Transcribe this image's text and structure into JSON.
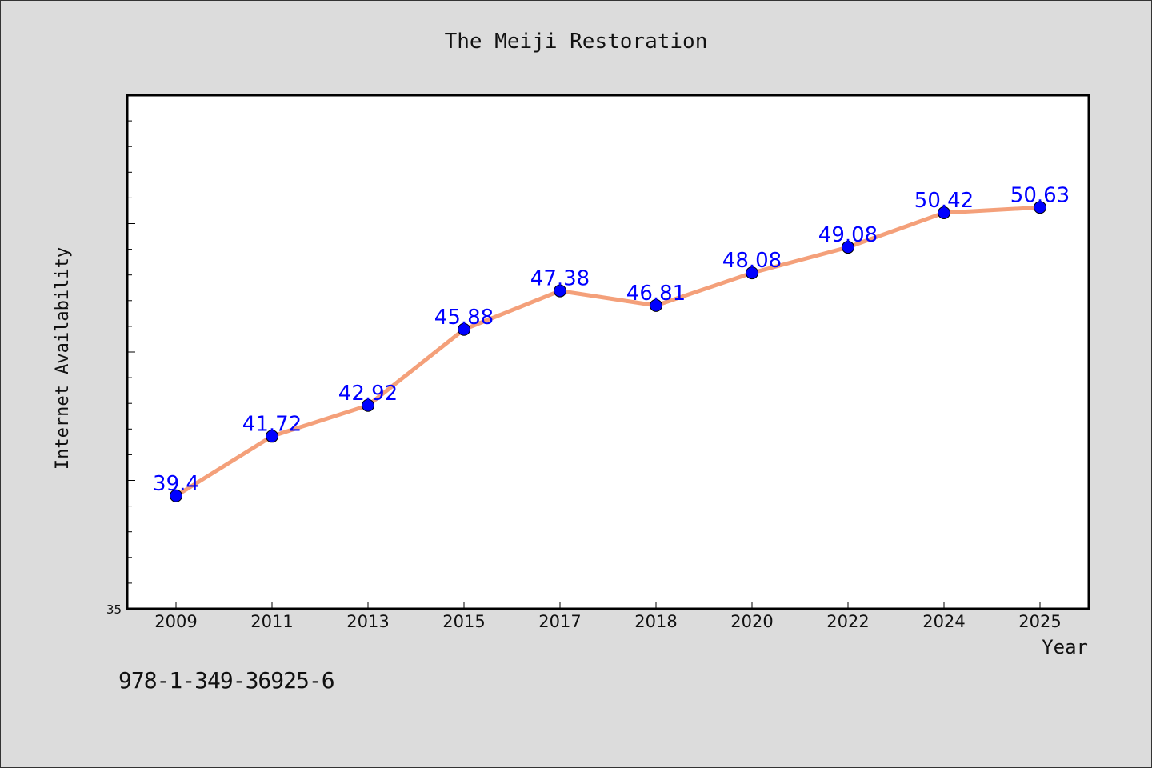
{
  "chart_data": {
    "type": "line",
    "title": "The Meiji Restoration",
    "xlabel": "Year",
    "ylabel": "Internet Availability",
    "categories": [
      "2009",
      "2011",
      "2013",
      "2015",
      "2017",
      "2018",
      "2020",
      "2022",
      "2024",
      "2025"
    ],
    "series": [
      {
        "values": [
          39.4,
          41.72,
          42.92,
          45.88,
          47.38,
          46.81,
          48.08,
          49.08,
          50.42,
          50.63
        ]
      }
    ],
    "y_tick_label": "35",
    "ylim": [
      35,
      55
    ],
    "grid": false,
    "colors": {
      "line": "#f4a07a",
      "marker": "#0000ff",
      "label": "#0000ff",
      "plot_bg": "#ffffff",
      "page_bg": "#dcdcdc"
    }
  },
  "footer": {
    "isbn": "978-1-349-36925-6"
  }
}
